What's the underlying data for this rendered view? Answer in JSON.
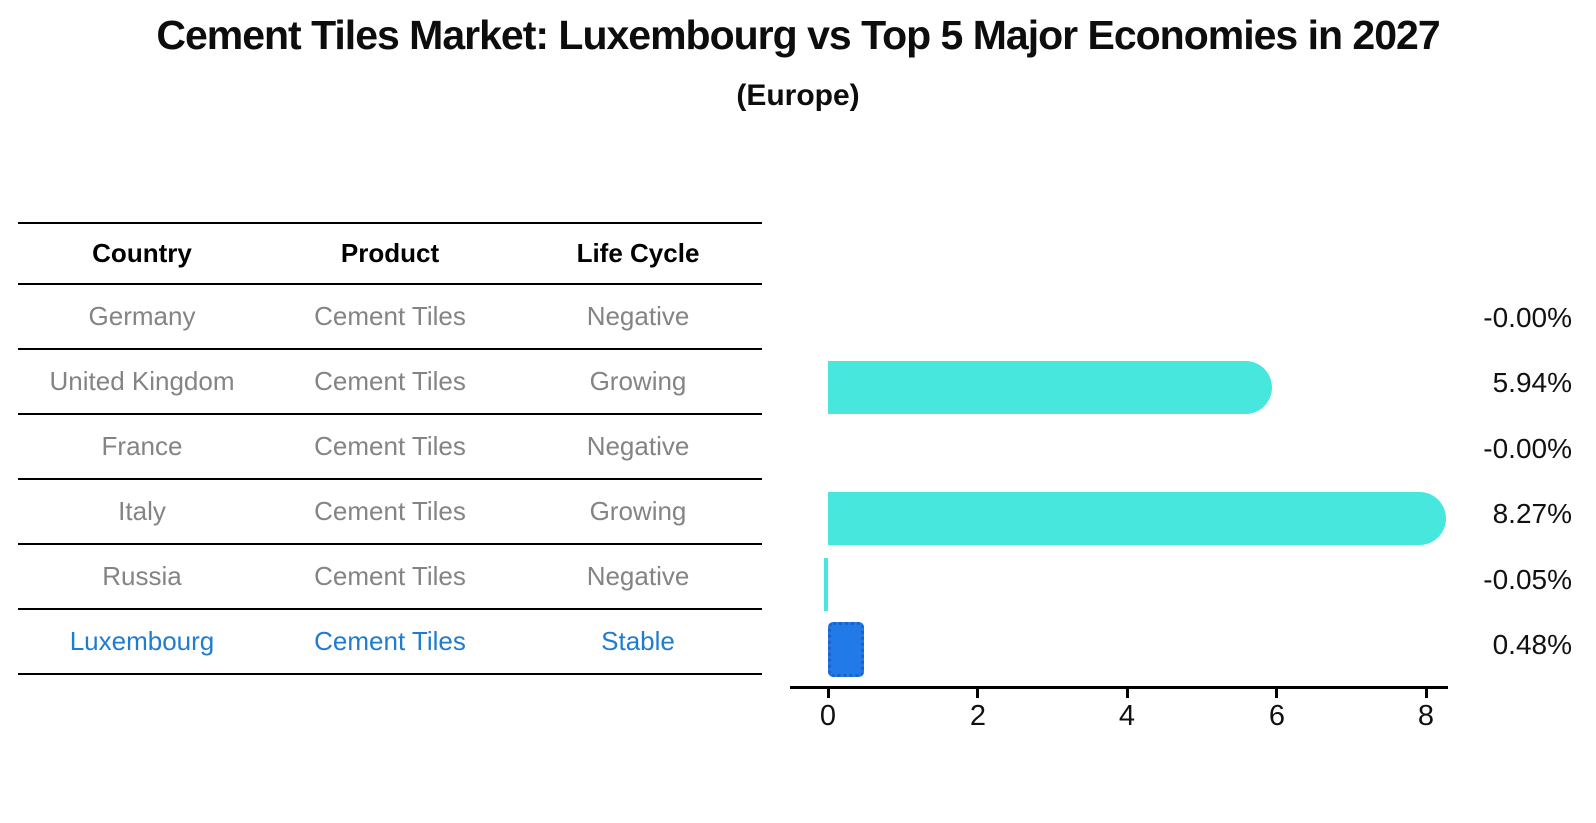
{
  "title": "Cement Tiles Market: Luxembourg vs Top 5 Major Economies in 2027",
  "subtitle": "(Europe)",
  "table": {
    "headers": [
      "Country",
      "Product",
      "Life Cycle"
    ],
    "rows": [
      {
        "country": "Germany",
        "product": "Cement Tiles",
        "life_cycle": "Negative",
        "value_label": "-0.00%"
      },
      {
        "country": "United Kingdom",
        "product": "Cement Tiles",
        "life_cycle": "Growing",
        "value_label": "5.94%"
      },
      {
        "country": "France",
        "product": "Cement Tiles",
        "life_cycle": "Negative",
        "value_label": "-0.00%"
      },
      {
        "country": "Italy",
        "product": "Cement Tiles",
        "life_cycle": "Growing",
        "value_label": "8.27%"
      },
      {
        "country": "Russia",
        "product": "Cement Tiles",
        "life_cycle": "Negative",
        "value_label": "-0.05%"
      },
      {
        "country": "Luxembourg",
        "product": "Cement Tiles",
        "life_cycle": "Stable",
        "value_label": "0.48%"
      }
    ],
    "highlight_row": "Luxembourg"
  },
  "chart_data": {
    "type": "bar",
    "orientation": "horizontal",
    "title": "Cement Tiles Market: Luxembourg vs Top 5 Major Economies in 2027",
    "subtitle": "(Europe)",
    "categories": [
      "Germany",
      "United Kingdom",
      "France",
      "Italy",
      "Russia",
      "Luxembourg"
    ],
    "values": [
      -0.0,
      5.94,
      -0.0,
      8.27,
      -0.05,
      0.48
    ],
    "value_labels": [
      "-0.00%",
      "5.94%",
      "-0.00%",
      "8.27%",
      "-0.05%",
      "0.48%"
    ],
    "unit": "%",
    "xlabel": "",
    "ylabel": "",
    "x_ticks": [
      "0",
      "2",
      "4",
      "6",
      "8"
    ],
    "xlim": [
      0,
      8.6
    ],
    "grid": false,
    "legend": "none",
    "bar_color": "#47E7DE",
    "highlight_color": "#2279E8",
    "highlight_index": 5
  },
  "colors": {
    "text": "#111111",
    "muted_text": "#848484",
    "highlight_text": "#1E7CD2",
    "axis": "#000000",
    "bar_cyan": "#47E7DE",
    "bar_blue": "#2279E8",
    "bar_blue_border": "#1D63C6"
  }
}
